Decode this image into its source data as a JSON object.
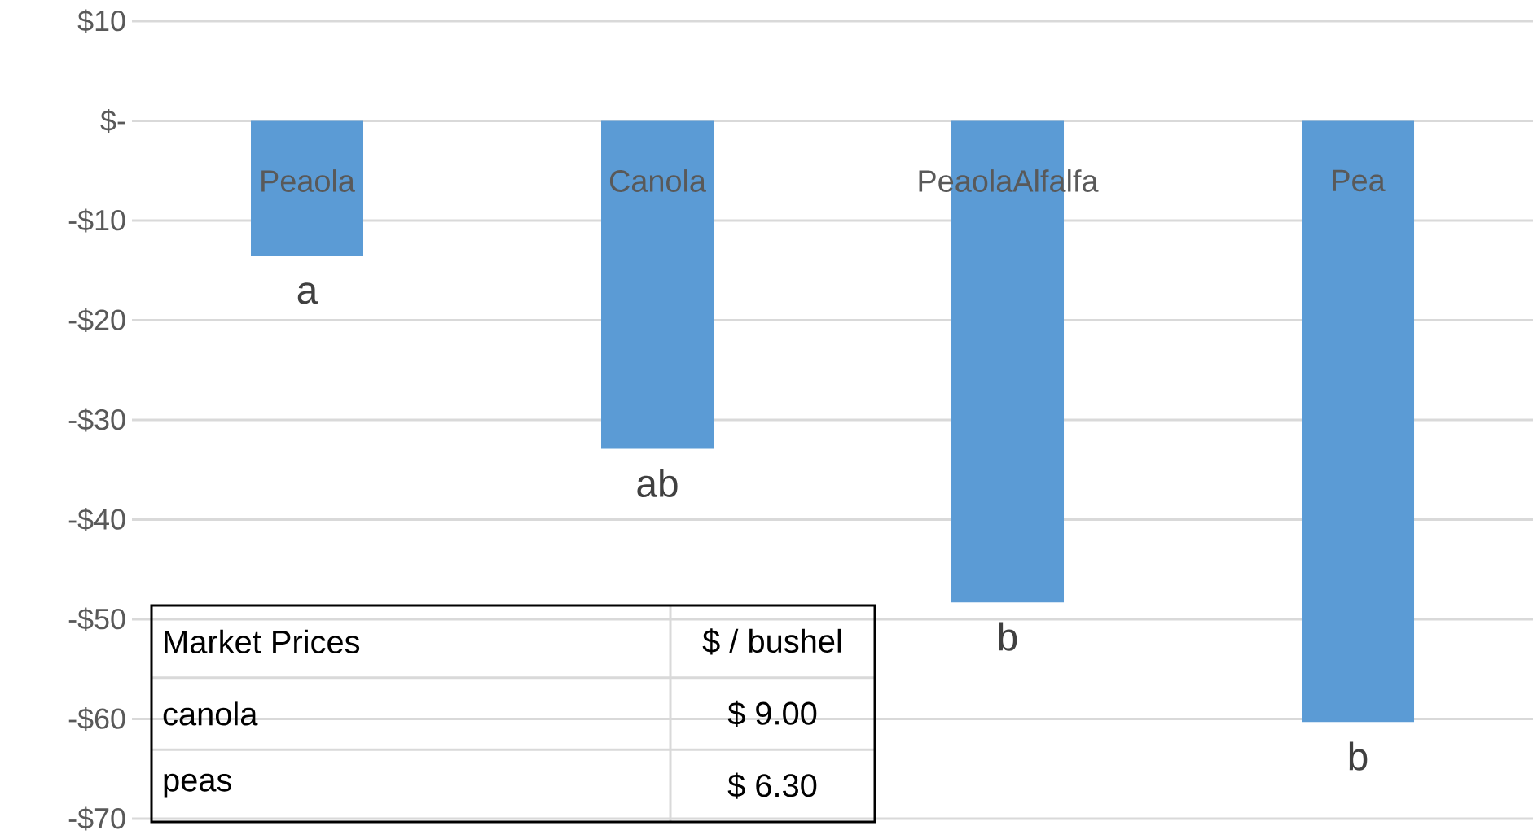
{
  "chart_data": {
    "type": "bar",
    "categories": [
      "Peaola",
      "Canola",
      "PeaolaAlfalfa",
      "Pea"
    ],
    "values": [
      -13.5,
      -32.9,
      -48.3,
      -60.3
    ],
    "color": "#5b9bd5",
    "ylim": [
      -70,
      10
    ],
    "yticks": [
      {
        "value": 10,
        "label": "$10"
      },
      {
        "value": 0,
        "label": "$-"
      },
      {
        "value": -10,
        "label": "-$10"
      },
      {
        "value": -20,
        "label": "-$20"
      },
      {
        "value": -30,
        "label": "-$30"
      },
      {
        "value": -40,
        "label": "-$40"
      },
      {
        "value": -50,
        "label": "-$50"
      },
      {
        "value": -60,
        "label": "-$60"
      },
      {
        "value": -70,
        "label": "-$70"
      }
    ],
    "grid": "y",
    "annotations": [
      "a",
      "ab",
      "b",
      "b",
      "Market Prices",
      "$ / bushel",
      "canola",
      "$ 9.00",
      "peas",
      "$ 6.30"
    ]
  }
}
